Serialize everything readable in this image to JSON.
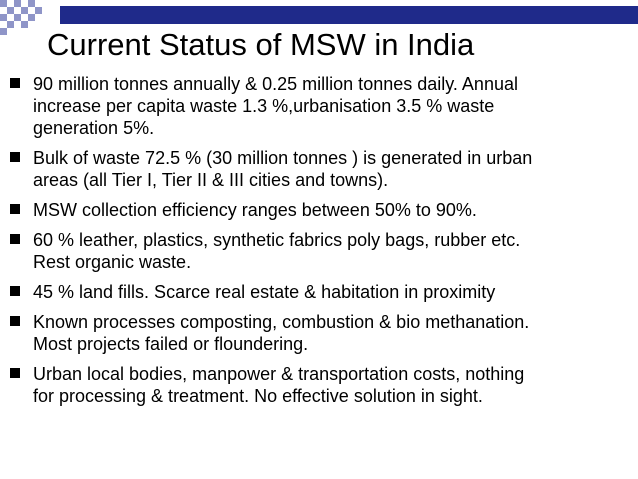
{
  "slide": {
    "title": "Current Status of MSW in India",
    "bullets": [
      {
        "line1": "90 million tonnes annually & 0.25 million tonnes daily. Annual",
        "line2": "increase per capita waste 1.3 %,urbanisation 3.5 % waste",
        "line3": "generation 5%."
      },
      {
        "line1": "Bulk of waste 72.5 %  (30 million tonnes ) is generated in urban",
        "line2": "areas (all Tier I, Tier II & III cities and towns)."
      },
      {
        "line1": "MSW collection efficiency ranges between 50% to 90%."
      },
      {
        "line1": "60 % leather, plastics, synthetic fabrics  poly bags, rubber etc.",
        "line2": "Rest organic waste."
      },
      {
        "line1": "45  % land fills. Scarce real estate  & habitation in proximity"
      },
      {
        "line1": "Known processes composting, combustion & bio methanation.",
        "line2": "Most projects failed or floundering."
      },
      {
        "line1": "Urban local  bodies, manpower & transportation costs, nothing",
        "line2": "for processing & treatment. No  effective  solution in sight."
      }
    ]
  },
  "colors": {
    "band": "#1f2a8a",
    "checker_dark": "#1f2a8a",
    "checker_light": "#8f95c8"
  }
}
